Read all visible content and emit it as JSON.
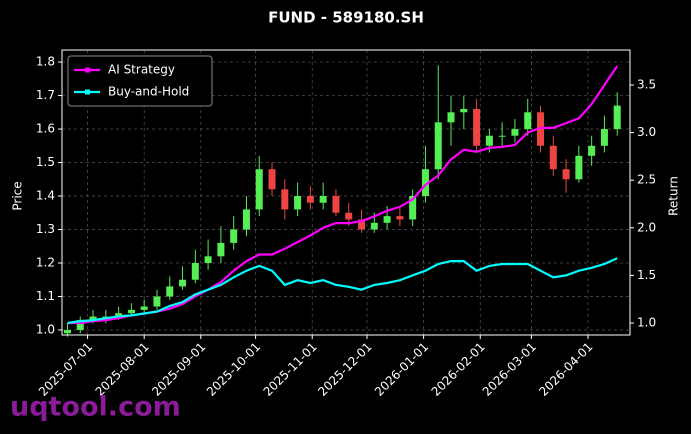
{
  "chart_data": {
    "type": "candlestick",
    "title": "FUND - 589180.SH",
    "ylabel": "Price",
    "y2label": "Return",
    "watermark": "uqtool.com",
    "grid": true,
    "legend_loc": "upper left",
    "up_color": "#55ee55",
    "down_color": "#ee4444",
    "xlim": [
      "2025-06-17",
      "2026-04-24"
    ],
    "xticks": [
      "2025-07-01",
      "2025-08-01",
      "2025-09-01",
      "2025-10-01",
      "2025-11-01",
      "2025-12-01",
      "2026-01-01",
      "2026-02-01",
      "2026-03-01",
      "2026-04-01"
    ],
    "ylim": [
      0.985,
      1.836
    ],
    "yticks": [
      {
        "value": 1.0,
        "label": "1.0"
      },
      1.1,
      1.2,
      1.3,
      1.4,
      1.5,
      1.6,
      1.7,
      1.8
    ],
    "y2lim": [
      0.874,
      3.868
    ],
    "y2ticks": [
      {
        "value": 1.0,
        "label": "1.0"
      },
      1.5,
      {
        "value": 2.0,
        "label": "2.0"
      },
      2.5,
      {
        "value": 3.0,
        "label": "3.0"
      },
      3.5
    ],
    "x": [
      "2025-06-20",
      "2025-06-27",
      "2025-07-04",
      "2025-07-11",
      "2025-07-18",
      "2025-07-25",
      "2025-08-01",
      "2025-08-08",
      "2025-08-15",
      "2025-08-22",
      "2025-08-29",
      "2025-09-05",
      "2025-09-12",
      "2025-09-19",
      "2025-09-26",
      "2025-10-03",
      "2025-10-10",
      "2025-10-17",
      "2025-10-24",
      "2025-10-31",
      "2025-11-07",
      "2025-11-14",
      "2025-11-21",
      "2025-11-28",
      "2025-12-05",
      "2025-12-12",
      "2025-12-19",
      "2025-12-26",
      "2026-01-02",
      "2026-01-09",
      "2026-01-16",
      "2026-01-23",
      "2026-01-30",
      "2026-02-06",
      "2026-02-13",
      "2026-02-20",
      "2026-02-27",
      "2026-03-06",
      "2026-03-13",
      "2026-03-20",
      "2026-03-27",
      "2026-04-03",
      "2026-04-10",
      "2026-04-17"
    ],
    "open": [
      0.99,
      1.0,
      1.03,
      1.04,
      1.04,
      1.05,
      1.06,
      1.07,
      1.1,
      1.13,
      1.15,
      1.2,
      1.22,
      1.26,
      1.3,
      1.36,
      1.48,
      1.42,
      1.36,
      1.4,
      1.38,
      1.4,
      1.35,
      1.33,
      1.3,
      1.32,
      1.34,
      1.33,
      1.4,
      1.48,
      1.62,
      1.65,
      1.66,
      1.55,
      1.58,
      1.58,
      1.6,
      1.65,
      1.55,
      1.48,
      1.45,
      1.52,
      1.55,
      1.6
    ],
    "high": [
      1.02,
      1.04,
      1.06,
      1.06,
      1.07,
      1.08,
      1.09,
      1.12,
      1.16,
      1.19,
      1.24,
      1.27,
      1.31,
      1.34,
      1.4,
      1.52,
      1.5,
      1.45,
      1.44,
      1.43,
      1.44,
      1.42,
      1.38,
      1.36,
      1.35,
      1.37,
      1.37,
      1.42,
      1.55,
      1.79,
      1.7,
      1.7,
      1.69,
      1.6,
      1.62,
      1.63,
      1.69,
      1.67,
      1.58,
      1.51,
      1.55,
      1.58,
      1.64,
      1.71
    ],
    "low": [
      0.98,
      0.99,
      1.02,
      1.02,
      1.03,
      1.04,
      1.05,
      1.06,
      1.09,
      1.12,
      1.14,
      1.18,
      1.2,
      1.24,
      1.28,
      1.34,
      1.4,
      1.33,
      1.34,
      1.36,
      1.36,
      1.34,
      1.31,
      1.29,
      1.29,
      1.3,
      1.31,
      1.31,
      1.38,
      1.45,
      1.55,
      1.6,
      1.53,
      1.53,
      1.55,
      1.56,
      1.58,
      1.53,
      1.46,
      1.41,
      1.44,
      1.49,
      1.53,
      1.58
    ],
    "close": [
      1.0,
      1.03,
      1.04,
      1.04,
      1.05,
      1.06,
      1.07,
      1.1,
      1.13,
      1.15,
      1.2,
      1.22,
      1.26,
      1.3,
      1.36,
      1.48,
      1.42,
      1.36,
      1.4,
      1.38,
      1.4,
      1.35,
      1.33,
      1.3,
      1.32,
      1.34,
      1.33,
      1.4,
      1.48,
      1.62,
      1.65,
      1.66,
      1.55,
      1.58,
      1.58,
      1.6,
      1.65,
      1.55,
      1.48,
      1.45,
      1.52,
      1.55,
      1.6,
      1.67
    ],
    "series": [
      {
        "name": "AI Strategy",
        "color": "#ff00ff",
        "axis": "y2",
        "values": [
          1.0,
          1.0,
          1.02,
          1.03,
          1.05,
          1.08,
          1.1,
          1.12,
          1.15,
          1.2,
          1.28,
          1.35,
          1.43,
          1.55,
          1.65,
          1.72,
          1.72,
          1.78,
          1.85,
          1.92,
          2.0,
          2.05,
          2.05,
          2.07,
          2.12,
          2.18,
          2.22,
          2.3,
          2.45,
          2.55,
          2.72,
          2.82,
          2.8,
          2.84,
          2.85,
          2.87,
          3.0,
          3.05,
          3.05,
          3.1,
          3.15,
          3.3,
          3.5,
          3.7
        ]
      },
      {
        "name": "Buy-and-Hold",
        "color": "#00ffff",
        "axis": "y2",
        "values": [
          1.0,
          1.02,
          1.03,
          1.05,
          1.07,
          1.08,
          1.1,
          1.12,
          1.18,
          1.22,
          1.3,
          1.35,
          1.4,
          1.48,
          1.55,
          1.6,
          1.55,
          1.4,
          1.45,
          1.42,
          1.45,
          1.4,
          1.38,
          1.35,
          1.4,
          1.42,
          1.45,
          1.5,
          1.55,
          1.62,
          1.65,
          1.65,
          1.55,
          1.6,
          1.62,
          1.62,
          1.62,
          1.55,
          1.48,
          1.5,
          1.55,
          1.58,
          1.62,
          1.68
        ]
      }
    ]
  }
}
